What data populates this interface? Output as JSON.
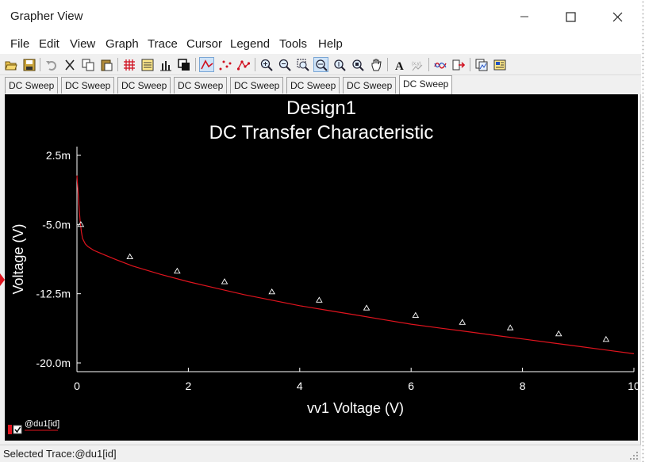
{
  "window": {
    "title": "Grapher View"
  },
  "menu": [
    "File",
    "Edit",
    "View",
    "Graph",
    "Trace",
    "Cursor",
    "Legend",
    "Tools",
    "Help"
  ],
  "toolbar": {
    "icons": [
      "open-icon",
      "save-icon",
      "undo-icon",
      "cut-icon",
      "copy-icon",
      "paste-icon",
      "grid-icon",
      "toggle-legend-icon",
      "bar-chart-icon",
      "overlay-icon",
      "line-trace-icon",
      "scatter-dots-icon",
      "line-markers-icon",
      "zoom-in-icon",
      "zoom-out-icon",
      "zoom-area-icon",
      "zoom-x-icon",
      "zoom-y-icon",
      "pan-hand-icon",
      "text-icon",
      "measure-icon",
      "waveform-icon",
      "export-icon",
      "copy-graph-icon",
      "properties-icon"
    ]
  },
  "tabs": [
    "DC Sweep",
    "DC Sweep",
    "DC Sweep",
    "DC Sweep",
    "DC Sweep",
    "DC Sweep",
    "DC Sweep",
    "DC Sweep"
  ],
  "active_tab": 7,
  "chart_data": {
    "type": "line",
    "title": "Design1",
    "subtitle": "DC Transfer Characteristic",
    "xlabel": "vv1 Voltage (V)",
    "ylabel": "Voltage (V)",
    "xlim": [
      0,
      10
    ],
    "ylim": [
      -20.0,
      2.5
    ],
    "x_ticks": [
      0,
      2,
      4,
      6,
      8,
      10
    ],
    "x_tick_labels": [
      "0",
      "2",
      "4",
      "6",
      "8",
      "10"
    ],
    "y_ticks": [
      2.5,
      -5.0,
      -12.5,
      -20.0
    ],
    "y_tick_labels": [
      "2.5m",
      "-5.0m",
      "-12.5m",
      "-20.0m"
    ],
    "grid": false,
    "legend": "bottom-left",
    "line_color": "#e0141e",
    "series": [
      {
        "name": "@du1[id]",
        "x": [
          0.0,
          0.02,
          0.04,
          0.06,
          0.08,
          0.1,
          0.15,
          0.2,
          0.3,
          0.5,
          0.7,
          1.0,
          1.5,
          2.0,
          2.5,
          3.0,
          3.5,
          4.0,
          4.5,
          5.0,
          5.5,
          6.0,
          6.5,
          7.0,
          7.5,
          8.0,
          8.5,
          9.0,
          9.5,
          10.0
        ],
        "y": [
          0.3,
          -1.5,
          -3.3,
          -4.8,
          -5.8,
          -6.5,
          -7.1,
          -7.4,
          -7.8,
          -8.3,
          -8.8,
          -9.5,
          -10.4,
          -11.2,
          -11.9,
          -12.6,
          -13.2,
          -13.8,
          -14.3,
          -14.8,
          -15.3,
          -15.8,
          -16.2,
          -16.6,
          -17.0,
          -17.4,
          -17.8,
          -18.2,
          -18.6,
          -19.0
        ]
      }
    ],
    "markers": {
      "x": [
        0.07,
        0.95,
        1.8,
        2.65,
        3.5,
        4.35,
        5.2,
        6.08,
        6.92,
        7.78,
        8.65,
        9.5
      ],
      "y": [
        -5.0,
        -8.5,
        -10.05,
        -11.2,
        -12.3,
        -13.2,
        -14.05,
        -14.85,
        -15.6,
        -16.2,
        -16.85,
        -17.45
      ]
    }
  },
  "status": {
    "text": "Selected Trace:@du1[id]"
  }
}
